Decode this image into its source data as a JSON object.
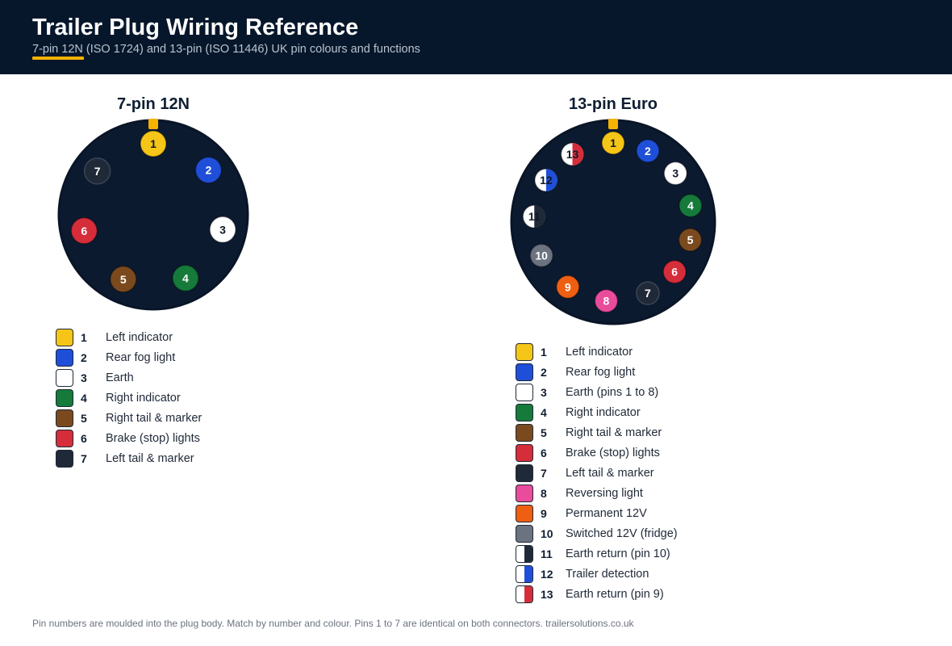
{
  "header": {
    "title": "Trailer Plug Wiring Reference",
    "subtitle": "7-pin 12N (ISO 1724) and 13-pin (ISO 11446) UK pin colours and functions"
  },
  "colors": {
    "yellow": "#f5c518",
    "blue": "#1f4fd8",
    "white": "#ffffff",
    "green": "#157a3a",
    "brown": "#7a4a1e",
    "red": "#d62d3a",
    "black": "#1f2937",
    "pink": "#e84c9b",
    "orange": "#ef5f12",
    "grey": "#6b7380",
    "plug_body": "#0c1a30",
    "key": "#f5b301"
  },
  "connector7": {
    "heading": "7-pin 12N",
    "pins": [
      {
        "num": "1",
        "fn": "Left indicator",
        "color": "yellow"
      },
      {
        "num": "2",
        "fn": "Rear fog light",
        "color": "blue"
      },
      {
        "num": "3",
        "fn": "Earth",
        "color": "white"
      },
      {
        "num": "4",
        "fn": "Right indicator",
        "color": "green"
      },
      {
        "num": "5",
        "fn": "Right tail & marker",
        "color": "brown"
      },
      {
        "num": "6",
        "fn": "Brake (stop) lights",
        "color": "red"
      },
      {
        "num": "7",
        "fn": "Left tail & marker",
        "color": "black"
      }
    ]
  },
  "connector13": {
    "heading": "13-pin Euro",
    "pins": [
      {
        "num": "1",
        "fn": "Left indicator",
        "color": "yellow"
      },
      {
        "num": "2",
        "fn": "Rear fog light",
        "color": "blue"
      },
      {
        "num": "3",
        "fn": "Earth (pins 1 to 8)",
        "color": "white"
      },
      {
        "num": "4",
        "fn": "Right indicator",
        "color": "green"
      },
      {
        "num": "5",
        "fn": "Right tail & marker",
        "color": "brown"
      },
      {
        "num": "6",
        "fn": "Brake (stop) lights",
        "color": "red"
      },
      {
        "num": "7",
        "fn": "Left tail & marker",
        "color": "black"
      },
      {
        "num": "8",
        "fn": "Reversing light",
        "color": "pink"
      },
      {
        "num": "9",
        "fn": "Permanent 12V",
        "color": "orange"
      },
      {
        "num": "10",
        "fn": "Switched 12V (fridge)",
        "color": "grey"
      },
      {
        "num": "11",
        "fn": "Earth return (pin 10)",
        "color": "white",
        "color2": "black"
      },
      {
        "num": "12",
        "fn": "Trailer detection",
        "color": "white",
        "color2": "blue"
      },
      {
        "num": "13",
        "fn": "Earth return (pin 9)",
        "color": "white",
        "color2": "red"
      }
    ]
  },
  "footer": "Pin numbers are moulded into the plug body. Match by number and colour. Pins 1 to 7 are identical on both connectors. trailersolutions.co.uk"
}
